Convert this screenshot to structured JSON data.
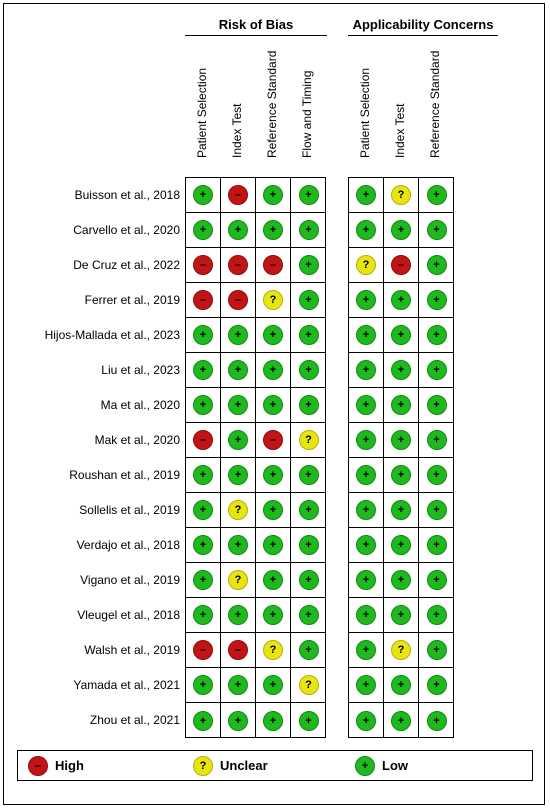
{
  "chart_data": {
    "type": "table",
    "title": "",
    "groups": [
      {
        "name": "Risk of Bias",
        "columns": [
          "Patient Selection",
          "Index Test",
          "Reference Standard",
          "Flow and Timing"
        ]
      },
      {
        "name": "Applicability Concerns",
        "columns": [
          "Patient Selection",
          "Index Test",
          "Reference Standard"
        ]
      }
    ],
    "studies": [
      "Buisson et al., 2018",
      "Carvello et al., 2020",
      "De Cruz et al., 2022",
      "Ferrer et al., 2019",
      "Hijos-Mallada et al., 2023",
      "Liu et al., 2023",
      "Ma et al., 2020",
      "Mak et al., 2020",
      "Roushan et al., 2019",
      "Sollelis et al., 2019",
      "Verdajo et al., 2018",
      "Vigano et al., 2019",
      "Vleugel et al., 2018",
      "Walsh et al., 2019",
      "Yamada et al., 2021",
      "Zhou et al., 2021"
    ],
    "risk_of_bias": [
      [
        "low",
        "high",
        "low",
        "low"
      ],
      [
        "low",
        "low",
        "low",
        "low"
      ],
      [
        "high",
        "high",
        "high",
        "low"
      ],
      [
        "high",
        "high",
        "unclear",
        "low"
      ],
      [
        "low",
        "low",
        "low",
        "low"
      ],
      [
        "low",
        "low",
        "low",
        "low"
      ],
      [
        "low",
        "low",
        "low",
        "low"
      ],
      [
        "high",
        "low",
        "high",
        "unclear"
      ],
      [
        "low",
        "low",
        "low",
        "low"
      ],
      [
        "low",
        "unclear",
        "low",
        "low"
      ],
      [
        "low",
        "low",
        "low",
        "low"
      ],
      [
        "low",
        "unclear",
        "low",
        "low"
      ],
      [
        "low",
        "low",
        "low",
        "low"
      ],
      [
        "high",
        "high",
        "unclear",
        "low"
      ],
      [
        "low",
        "low",
        "low",
        "unclear"
      ],
      [
        "low",
        "low",
        "low",
        "low"
      ]
    ],
    "applicability": [
      [
        "low",
        "unclear",
        "low"
      ],
      [
        "low",
        "low",
        "low"
      ],
      [
        "unclear",
        "high",
        "low"
      ],
      [
        "low",
        "low",
        "low"
      ],
      [
        "low",
        "low",
        "low"
      ],
      [
        "low",
        "low",
        "low"
      ],
      [
        "low",
        "low",
        "low"
      ],
      [
        "low",
        "low",
        "low"
      ],
      [
        "low",
        "low",
        "low"
      ],
      [
        "low",
        "low",
        "low"
      ],
      [
        "low",
        "low",
        "low"
      ],
      [
        "low",
        "low",
        "low"
      ],
      [
        "low",
        "low",
        "low"
      ],
      [
        "low",
        "unclear",
        "low"
      ],
      [
        "low",
        "low",
        "low"
      ],
      [
        "low",
        "low",
        "low"
      ]
    ],
    "levels": {
      "low": {
        "label": "Low",
        "symbol": "+",
        "color": "#1fb81f"
      },
      "high": {
        "label": "High",
        "symbol": "–",
        "color": "#c21414"
      },
      "unclear": {
        "label": "Unclear",
        "symbol": "?",
        "color": "#e8e410"
      }
    },
    "legend": [
      {
        "level": "high",
        "label": "High"
      },
      {
        "level": "unclear",
        "label": "Unclear"
      },
      {
        "level": "low",
        "label": "Low"
      }
    ],
    "legend_position": "bottom"
  }
}
